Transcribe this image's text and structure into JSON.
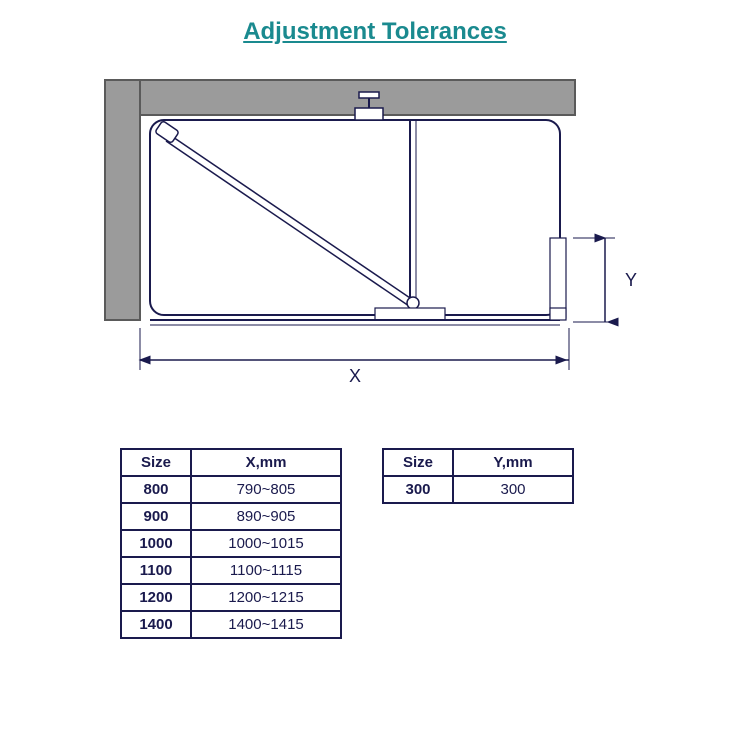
{
  "title": "Adjustment Tolerances",
  "title_color": "#1a8a8f",
  "diagram": {
    "stroke": "#1a1a4d",
    "wall_fill": "#9b9b9b",
    "wall_stroke": "#5a5a5a",
    "label_x": "X",
    "label_y": "Y"
  },
  "x_table": {
    "headers": [
      "Size",
      "X,mm"
    ],
    "rows": [
      [
        "800",
        "790~805"
      ],
      [
        "900",
        "890~905"
      ],
      [
        "1000",
        "1000~1015"
      ],
      [
        "1100",
        "1100~1115"
      ],
      [
        "1200",
        "1200~1215"
      ],
      [
        "1400",
        "1400~1415"
      ]
    ]
  },
  "y_table": {
    "headers": [
      "Size",
      "Y,mm"
    ],
    "rows": [
      [
        "300",
        "300"
      ]
    ]
  }
}
